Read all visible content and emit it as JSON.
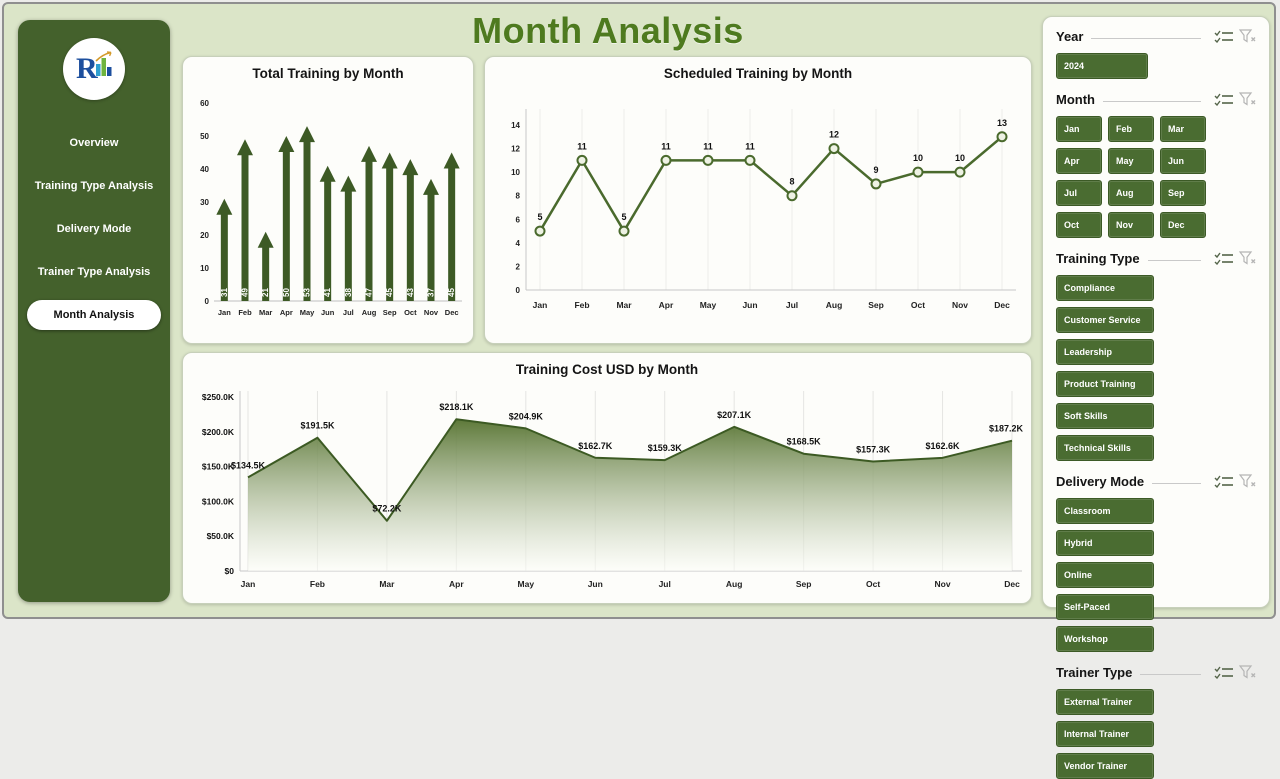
{
  "title": "Month Analysis",
  "colors": {
    "page_bg": "#dbe5c8",
    "sidebar_green": "#44612c",
    "button_green": "#4a6c31",
    "title_green": "#4e7a1f",
    "chart_green": "#4a6a2d"
  },
  "sidebar": {
    "items": [
      {
        "label": "Overview",
        "active": false
      },
      {
        "label": "Training Type Analysis",
        "active": false
      },
      {
        "label": "Delivery Mode",
        "active": false
      },
      {
        "label": "Trainer Type Analysis",
        "active": false
      },
      {
        "label": "Month Analysis",
        "active": true
      }
    ]
  },
  "chart_data": [
    {
      "type": "bar",
      "title": "Total Training by Month",
      "categories": [
        "Jan",
        "Feb",
        "Mar",
        "Apr",
        "May",
        "Jun",
        "Jul",
        "Aug",
        "Sep",
        "Oct",
        "Nov",
        "Dec"
      ],
      "values": [
        31,
        49,
        21,
        50,
        53,
        41,
        38,
        47,
        45,
        43,
        37,
        45
      ],
      "xlabel": "",
      "ylabel": "",
      "ylim": [
        0,
        60
      ],
      "yticks": [
        0,
        10,
        20,
        30,
        40,
        50,
        60
      ],
      "grid": false,
      "legend": "none"
    },
    {
      "type": "line",
      "title": "Scheduled Training by Month",
      "categories": [
        "Jan",
        "Feb",
        "Mar",
        "Apr",
        "May",
        "Jun",
        "Jul",
        "Aug",
        "Sep",
        "Oct",
        "Nov",
        "Dec"
      ],
      "values": [
        5,
        11,
        5,
        11,
        11,
        11,
        8,
        12,
        9,
        10,
        10,
        13
      ],
      "xlabel": "",
      "ylabel": "",
      "ylim": [
        0,
        14
      ],
      "yticks": [
        0,
        2,
        4,
        6,
        8,
        10,
        12,
        14
      ],
      "grid": true,
      "legend": "none"
    },
    {
      "type": "area",
      "title": "Training Cost USD by Month",
      "categories": [
        "Jan",
        "Feb",
        "Mar",
        "Apr",
        "May",
        "Jun",
        "Jul",
        "Aug",
        "Sep",
        "Oct",
        "Nov",
        "Dec"
      ],
      "values": [
        134.5,
        191.5,
        72.2,
        218.1,
        204.9,
        162.7,
        159.3,
        207.1,
        168.5,
        157.3,
        162.6,
        187.2
      ],
      "labels": [
        "$134.5K",
        "$191.5K",
        "$72.2K",
        "$218.1K",
        "$204.9K",
        "$162.7K",
        "$159.3K",
        "$207.1K",
        "$168.5K",
        "$157.3K",
        "$162.6K",
        "$187.2K"
      ],
      "xlabel": "",
      "ylabel": "",
      "ylim": [
        0,
        250
      ],
      "ytick_values": [
        0,
        50,
        100,
        150,
        200,
        250
      ],
      "ytick_labels": [
        "$0",
        "$50.0K",
        "$100.0K",
        "$150.0K",
        "$200.0K",
        "$250.0K"
      ],
      "grid": true,
      "legend": "none"
    }
  ],
  "slicers": [
    {
      "title": "Year",
      "options": [
        "2024"
      ]
    },
    {
      "title": "Month",
      "options": [
        "Jan",
        "Feb",
        "Mar",
        "Apr",
        "May",
        "Jun",
        "Jul",
        "Aug",
        "Sep",
        "Oct",
        "Nov",
        "Dec"
      ]
    },
    {
      "title": "Training Type",
      "options": [
        "Compliance",
        "Customer Service",
        "Leadership",
        "Product Training",
        "Soft Skills",
        "Technical Skills"
      ]
    },
    {
      "title": "Delivery Mode",
      "options": [
        "Classroom",
        "Hybrid",
        "Online",
        "Self-Paced",
        "Workshop"
      ]
    },
    {
      "title": "Trainer Type",
      "options": [
        "External Trainer",
        "Internal Trainer",
        "Vendor Trainer"
      ]
    }
  ]
}
